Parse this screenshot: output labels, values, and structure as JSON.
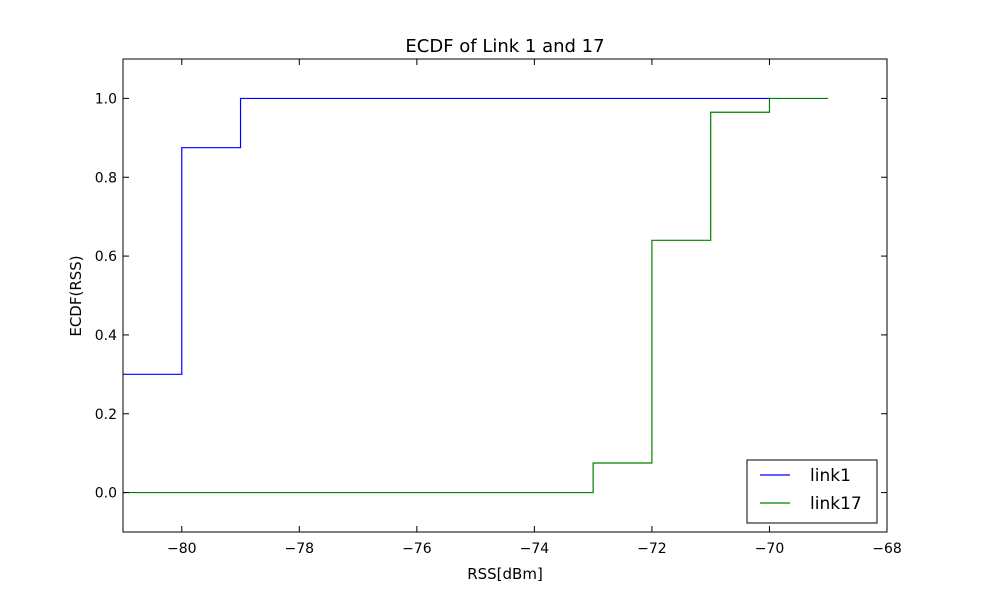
{
  "chart_data": {
    "type": "line",
    "step": true,
    "title": "ECDF of Link 1 and 17",
    "xlabel": "RSS[dBm]",
    "ylabel": "ECDF(RSS)",
    "xlim": [
      -81,
      -68
    ],
    "ylim": [
      -0.1,
      1.1
    ],
    "xticks": [
      -80,
      -78,
      -76,
      -74,
      -72,
      -70,
      -68
    ],
    "xtick_labels": [
      "−80",
      "−78",
      "−76",
      "−74",
      "−72",
      "−70",
      "−68"
    ],
    "yticks": [
      0.0,
      0.2,
      0.4,
      0.6,
      0.8,
      1.0
    ],
    "ytick_labels": [
      "0.0",
      "0.2",
      "0.4",
      "0.6",
      "0.8",
      "1.0"
    ],
    "grid": false,
    "legend_position": "bottom-right",
    "series": [
      {
        "name": "link1",
        "color": "#0000ff",
        "x": [
          -81,
          -80,
          -79,
          -70
        ],
        "y": [
          0.3,
          0.875,
          1.0,
          1.0
        ]
      },
      {
        "name": "link17",
        "color": "#008000",
        "x": [
          -81,
          -73,
          -72,
          -71,
          -70,
          -69
        ],
        "y": [
          0.0,
          0.075,
          0.64,
          0.965,
          1.0,
          1.0
        ]
      }
    ]
  }
}
